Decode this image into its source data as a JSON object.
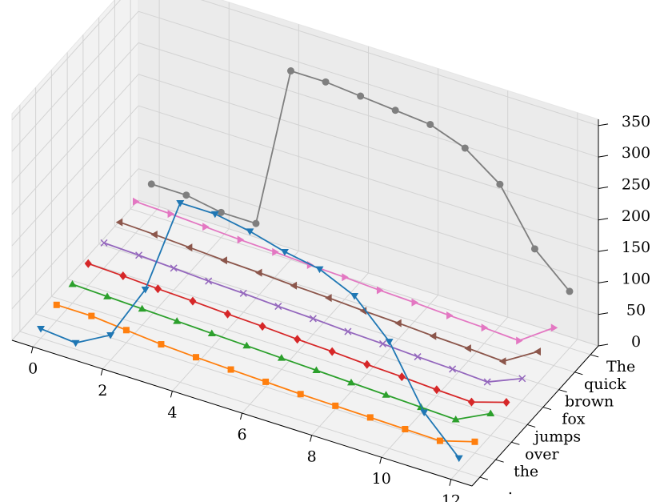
{
  "chart_data": {
    "type": "line3d",
    "x": [
      0,
      1,
      2,
      3,
      4,
      5,
      6,
      7,
      8,
      9,
      10,
      11,
      12
    ],
    "categories": [
      "The",
      "quick",
      "brown",
      "fox",
      "jumps",
      "over",
      "the",
      "."
    ],
    "series": [
      {
        "color": "#7f7f7f",
        "marker": "o",
        "values": [
          50,
          50,
          40,
          40,
          300,
          300,
          295,
          290,
          285,
          265,
          225,
          140,
          90
        ]
      },
      {
        "color": "#e377c2",
        "marker": ">",
        "values": [
          50,
          48,
          45,
          42,
          40,
          37,
          35,
          32,
          30,
          27,
          25,
          22,
          60
        ]
      },
      {
        "color": "#8c564b",
        "marker": "<",
        "values": [
          45,
          43,
          40,
          37,
          35,
          32,
          30,
          27,
          25,
          22,
          20,
          17,
          50
        ]
      },
      {
        "color": "#9467bd",
        "marker": "x",
        "values": [
          40,
          38,
          35,
          32,
          30,
          27,
          25,
          22,
          20,
          17,
          15,
          12,
          35
        ]
      },
      {
        "color": "#d62728",
        "marker": "D",
        "values": [
          35,
          33,
          30,
          28,
          25,
          23,
          20,
          18,
          15,
          13,
          10,
          8,
          25
        ]
      },
      {
        "color": "#2ca02c",
        "marker": "^",
        "values": [
          30,
          28,
          26,
          24,
          22,
          20,
          18,
          16,
          14,
          12,
          10,
          8,
          35
        ]
      },
      {
        "color": "#ff7f0e",
        "marker": "s",
        "values": [
          25,
          25,
          20,
          15,
          12,
          10,
          8,
          6,
          5,
          4,
          3,
          2,
          18
        ]
      },
      {
        "color": "#1f77b4",
        "marker": "v",
        "values": [
          15,
          10,
          40,
          130,
          285,
          285,
          275,
          260,
          250,
          225,
          170,
          75,
          20
        ]
      }
    ],
    "xlim": [
      -0.6,
      12.6
    ],
    "xticks": [
      0,
      2,
      4,
      6,
      8,
      10,
      12
    ],
    "zlim": [
      0,
      360
    ],
    "zticks": [
      0,
      50,
      100,
      150,
      200,
      250,
      300,
      350
    ],
    "grid": true
  }
}
